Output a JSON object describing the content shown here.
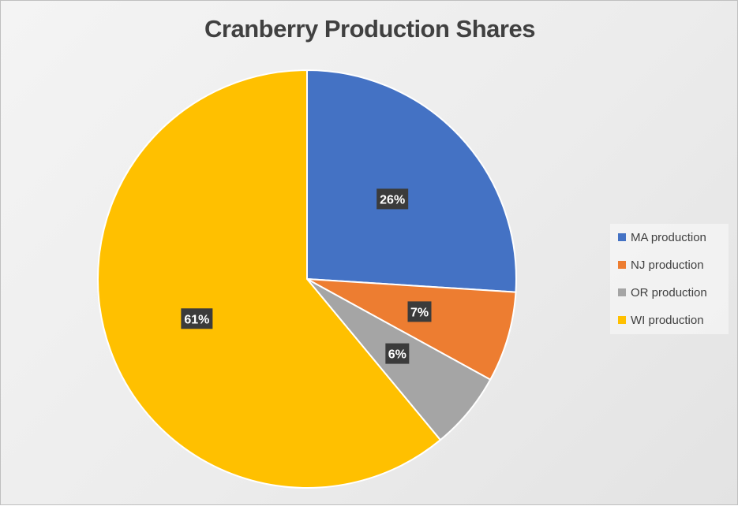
{
  "chart_data": {
    "type": "pie",
    "title": "Cranberry Production Shares",
    "categories": [
      "MA production",
      "NJ production",
      "OR production",
      "WI production"
    ],
    "values": [
      26,
      7,
      6,
      61
    ],
    "labels": [
      "26%",
      "7%",
      "6%",
      "61%"
    ],
    "colors": [
      "#4472C4",
      "#ED7D31",
      "#A5A5A5",
      "#FFC000"
    ],
    "legend_position": "right"
  }
}
